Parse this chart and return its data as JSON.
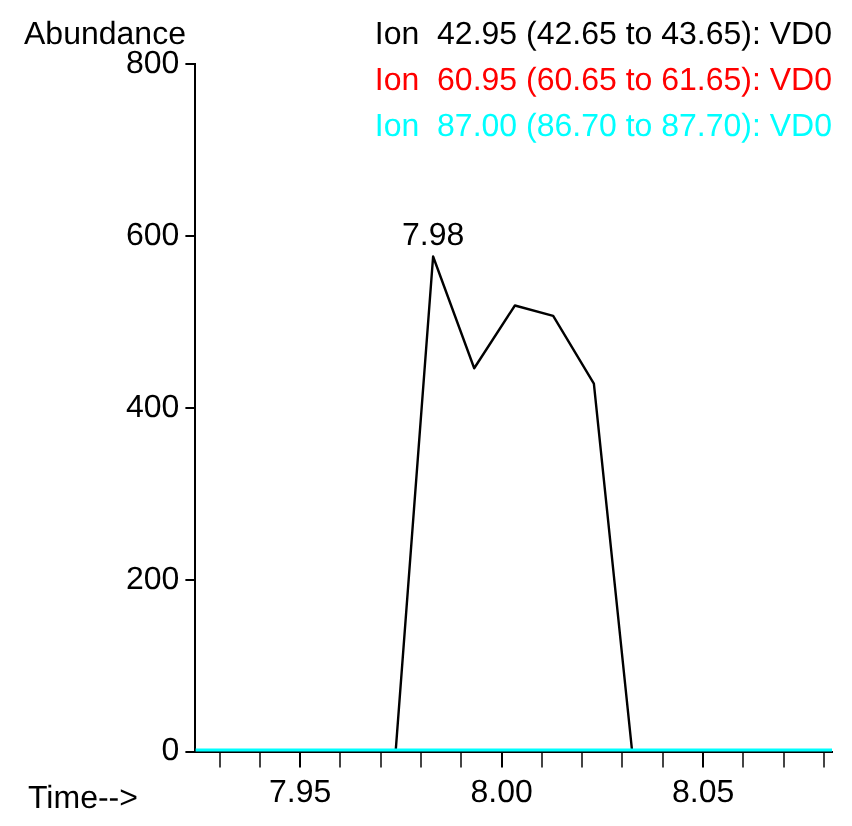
{
  "chart_data": {
    "type": "line",
    "xlabel": "Time-->",
    "ylabel": "Abundance",
    "xlim": [
      7.924,
      8.082
    ],
    "ylim": [
      0,
      800
    ],
    "xticks": [
      {
        "value": 7.93,
        "label": null
      },
      {
        "value": 7.94,
        "label": null
      },
      {
        "value": 7.95,
        "label": "7.95"
      },
      {
        "value": 7.96,
        "label": null
      },
      {
        "value": 7.97,
        "label": null
      },
      {
        "value": 7.98,
        "label": null
      },
      {
        "value": 7.99,
        "label": null
      },
      {
        "value": 8.0,
        "label": "8.00"
      },
      {
        "value": 8.01,
        "label": null
      },
      {
        "value": 8.02,
        "label": null
      },
      {
        "value": 8.03,
        "label": null
      },
      {
        "value": 8.04,
        "label": null
      },
      {
        "value": 8.05,
        "label": "8.05"
      },
      {
        "value": 8.06,
        "label": null
      },
      {
        "value": 8.07,
        "label": null
      },
      {
        "value": 8.08,
        "label": null
      }
    ],
    "yticks": [
      0,
      200,
      400,
      600,
      800
    ],
    "grid": false,
    "legend": "top right",
    "marker": "none",
    "line_style": "solid",
    "annotations": [
      {
        "text": "7.98",
        "x": 7.983,
        "y": 576
      }
    ],
    "series": [
      {
        "name": "Ion  42.95 (42.65 to 43.65): VD0",
        "color": "#000000",
        "x": [
          7.924,
          7.9737,
          7.983,
          7.9932,
          8.0033,
          8.0128,
          8.0229,
          8.0324,
          8.082
        ],
        "values": [
          0,
          0,
          576,
          446,
          519,
          507,
          428,
          0,
          0
        ]
      },
      {
        "name": "Ion  60.95 (60.65 to 61.65): VD0",
        "color": "#ff0000"
      },
      {
        "name": "Ion  87.00 (86.70 to 87.70): VD0",
        "color": "#00ffff",
        "x": [
          7.924,
          8.082
        ],
        "values": [
          0,
          0
        ]
      }
    ]
  }
}
